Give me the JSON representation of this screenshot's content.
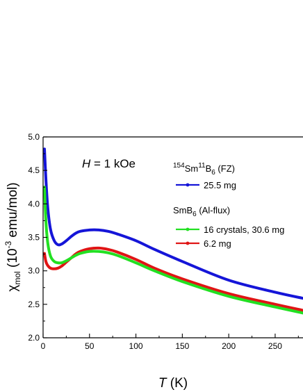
{
  "chart_data": {
    "type": "line",
    "xlabel": {
      "symbol": "T",
      "unit": " (K)"
    },
    "ylabel": {
      "symbol": "χ",
      "sub": "mol",
      "prefix": " (10",
      "exp": "-3",
      "suffix": " emu/mol)"
    },
    "xlim": [
      0,
      280
    ],
    "ylim": [
      2.0,
      5.0
    ],
    "x_ticks": [
      0,
      50,
      100,
      150,
      200,
      250
    ],
    "y_ticks": [
      "2.0",
      "2.5",
      "3.0",
      "3.5",
      "4.0",
      "4.5",
      "5.0"
    ],
    "annotation": {
      "symbol": "H",
      "rest": " = 1 kOe"
    },
    "legend": [
      {
        "kind": "header",
        "sup": "154",
        "a": "Sm",
        "sup2": "11",
        "b": "B",
        "sub": "6",
        "c": " (FZ)"
      },
      {
        "kind": "series",
        "label": "25.5 mg",
        "color": "#1515d8"
      },
      {
        "kind": "header",
        "a": "SmB",
        "sub": "6",
        "c": " (Al-flux)"
      },
      {
        "kind": "series",
        "label": "16 crystals, 30.6 mg",
        "color": "#22e022"
      },
      {
        "kind": "series",
        "label": "6.2 mg",
        "color": "#e01515"
      }
    ],
    "series": [
      {
        "name": "25.5 mg",
        "color": "#1515d8",
        "x": [
          1.5,
          3,
          5,
          8,
          12,
          16,
          20,
          25,
          30,
          35,
          40,
          50,
          60,
          70,
          80,
          100,
          120,
          150,
          200,
          250,
          280
        ],
        "y": [
          4.82,
          4.38,
          3.95,
          3.62,
          3.45,
          3.39,
          3.4,
          3.45,
          3.51,
          3.56,
          3.59,
          3.61,
          3.61,
          3.59,
          3.55,
          3.45,
          3.32,
          3.14,
          2.86,
          2.68,
          2.59
        ]
      },
      {
        "name": "16 crystals, 30.6 mg",
        "color": "#22e022",
        "x": [
          1.5,
          3,
          5,
          8,
          12,
          16,
          20,
          25,
          30,
          35,
          40,
          50,
          60,
          70,
          80,
          100,
          120,
          150,
          200,
          250,
          280
        ],
        "y": [
          4.25,
          3.75,
          3.42,
          3.22,
          3.14,
          3.12,
          3.12,
          3.15,
          3.19,
          3.23,
          3.26,
          3.29,
          3.29,
          3.27,
          3.23,
          3.12,
          3.0,
          2.84,
          2.62,
          2.46,
          2.37
        ]
      },
      {
        "name": "6.2 mg",
        "color": "#e01515",
        "x": [
          1.5,
          3,
          5,
          8,
          12,
          16,
          20,
          25,
          30,
          35,
          40,
          50,
          60,
          70,
          80,
          100,
          120,
          150,
          200,
          250,
          280
        ],
        "y": [
          3.26,
          3.14,
          3.08,
          3.04,
          3.03,
          3.04,
          3.07,
          3.13,
          3.19,
          3.25,
          3.29,
          3.33,
          3.34,
          3.32,
          3.28,
          3.17,
          3.04,
          2.88,
          2.66,
          2.5,
          2.41
        ]
      }
    ]
  }
}
